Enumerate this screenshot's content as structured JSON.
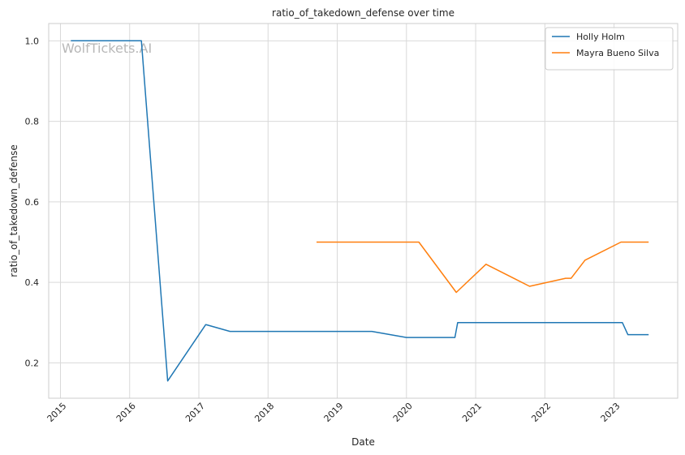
{
  "watermark": "WolfTickets.AI",
  "chart_data": {
    "type": "line",
    "title": "ratio_of_takedown_defense over time",
    "xlabel": "Date",
    "ylabel": "ratio_of_takedown_defense",
    "xlim": [
      2014.83,
      2023.92
    ],
    "ylim": [
      0.112,
      1.043
    ],
    "x_ticks": [
      2015,
      2016,
      2017,
      2018,
      2019,
      2020,
      2021,
      2022,
      2023
    ],
    "x_tick_labels": [
      "2015",
      "2016",
      "2017",
      "2018",
      "2019",
      "2020",
      "2021",
      "2022",
      "2023"
    ],
    "y_ticks": [
      0.2,
      0.4,
      0.6,
      0.8,
      1.0
    ],
    "y_tick_labels": [
      "0.2",
      "0.4",
      "0.6",
      "0.8",
      "1.0"
    ],
    "grid": true,
    "legend_position": "top-right",
    "series": [
      {
        "name": "Holly Holm",
        "color": "#1f77b4",
        "x": [
          2015.15,
          2016.17,
          2016.55,
          2017.1,
          2017.45,
          2018.0,
          2019.5,
          2020.0,
          2020.7,
          2020.74,
          2021.5,
          2022.5,
          2023.12,
          2023.2,
          2023.5
        ],
        "y": [
          1.0,
          1.0,
          0.155,
          0.295,
          0.278,
          0.278,
          0.278,
          0.263,
          0.263,
          0.3,
          0.3,
          0.3,
          0.3,
          0.27,
          0.27
        ]
      },
      {
        "name": "Mayra Bueno Silva",
        "color": "#ff7f0e",
        "x": [
          2018.7,
          2019.5,
          2020.18,
          2020.72,
          2021.15,
          2021.78,
          2022.3,
          2022.38,
          2022.58,
          2023.1,
          2023.5
        ],
        "y": [
          0.5,
          0.5,
          0.5,
          0.375,
          0.445,
          0.39,
          0.41,
          0.41,
          0.455,
          0.5,
          0.5
        ]
      }
    ]
  }
}
